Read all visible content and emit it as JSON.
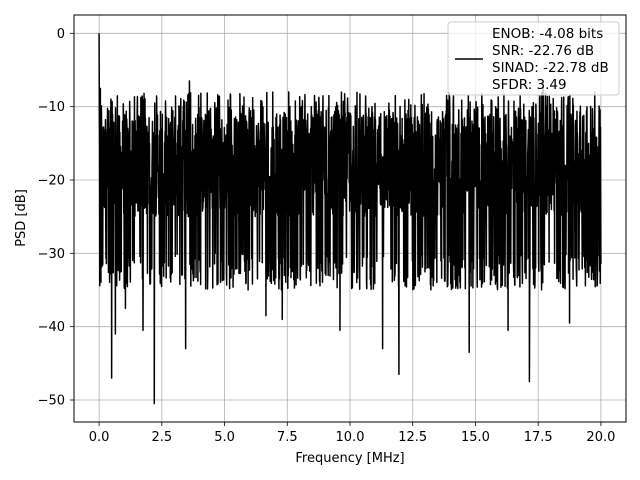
{
  "chart_data": {
    "type": "line",
    "title": "",
    "xlabel": "Frequency [MHz]",
    "ylabel": "PSD [dB]",
    "xlim": [
      -1.0,
      21.0
    ],
    "ylim": [
      -53.0,
      2.5
    ],
    "xticks": [
      0.0,
      2.5,
      5.0,
      7.5,
      10.0,
      12.5,
      15.0,
      17.5,
      20.0
    ],
    "xtick_labels": [
      "0.0",
      "2.5",
      "5.0",
      "7.5",
      "10.0",
      "12.5",
      "15.0",
      "17.5",
      "20.0"
    ],
    "yticks": [
      0,
      -10,
      -20,
      -30,
      -40,
      -50
    ],
    "ytick_labels": [
      "0",
      "−10",
      "−20",
      "−30",
      "−40",
      "−50"
    ],
    "grid": true,
    "legend_position": "top-right",
    "line_color": "#000000",
    "series": [
      {
        "name": "ENOB: -4.08 bits\nSNR: -22.76 dB\nSINAD: -22.78 dB\nSFDR: 3.49",
        "legend_lines": [
          "ENOB: -4.08 bits",
          "SNR: -22.76 dB",
          "SINAD: -22.78 dB",
          "SFDR: 3.49"
        ],
        "x_range": [
          0.0,
          20.0
        ],
        "noise_floor_db": {
          "median": -18,
          "upper": -8,
          "lower": -30
        },
        "peaks": [
          {
            "x": 0.0,
            "y": 0.0
          },
          {
            "x": 0.05,
            "y": -7.5
          },
          {
            "x": 0.1,
            "y": -12.5
          },
          {
            "x": 3.6,
            "y": -6.5
          },
          {
            "x": 17.7,
            "y": -6.5
          }
        ],
        "dips": [
          {
            "x": 0.5,
            "y": -47.0
          },
          {
            "x": 0.65,
            "y": -41.0
          },
          {
            "x": 1.05,
            "y": -37.5
          },
          {
            "x": 1.75,
            "y": -40.5
          },
          {
            "x": 2.2,
            "y": -50.5
          },
          {
            "x": 3.45,
            "y": -43.0
          },
          {
            "x": 6.65,
            "y": -38.5
          },
          {
            "x": 7.3,
            "y": -39.0
          },
          {
            "x": 9.6,
            "y": -40.5
          },
          {
            "x": 11.3,
            "y": -43.0
          },
          {
            "x": 11.95,
            "y": -46.5
          },
          {
            "x": 14.75,
            "y": -43.5
          },
          {
            "x": 16.3,
            "y": -40.5
          },
          {
            "x": 17.15,
            "y": -47.5
          },
          {
            "x": 18.75,
            "y": -39.5
          }
        ]
      }
    ]
  }
}
